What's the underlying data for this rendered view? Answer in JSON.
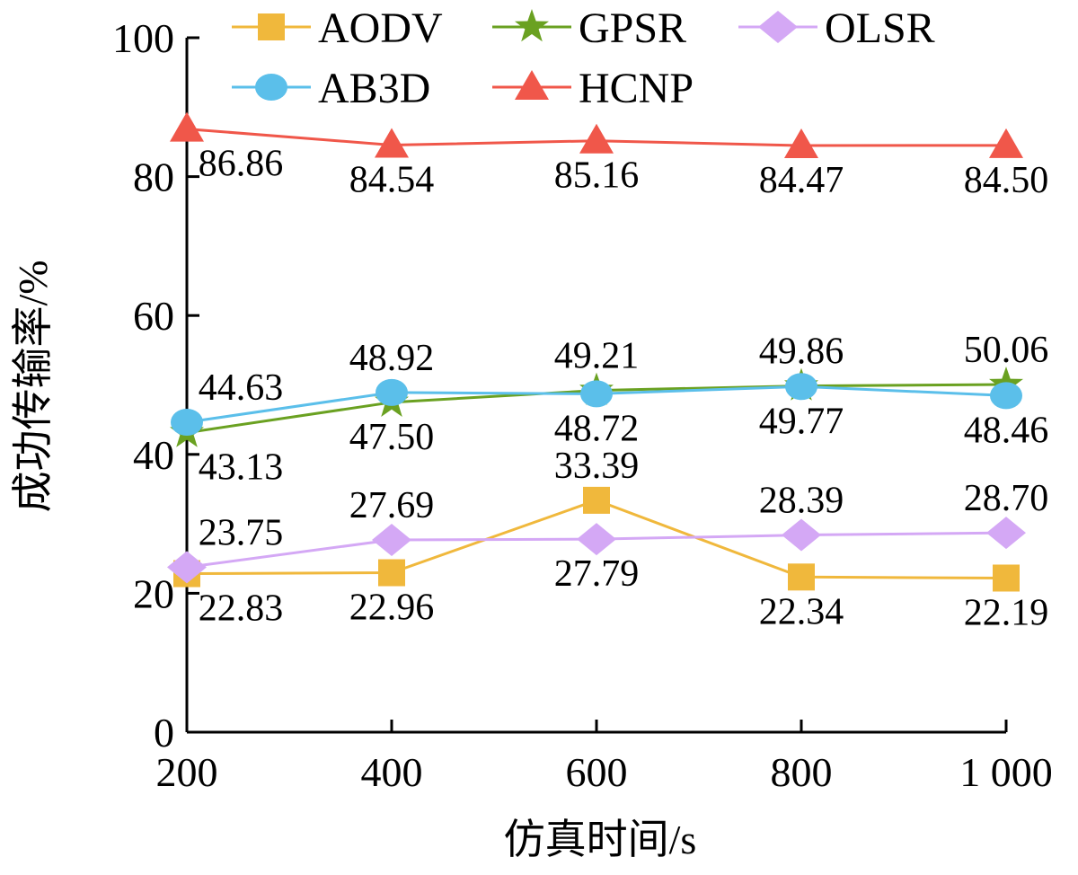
{
  "chart_data": {
    "type": "line",
    "title": "",
    "xlabel": "仿真时间/s",
    "ylabel": "成功传输率/%",
    "x": [
      200,
      400,
      600,
      800,
      1000
    ],
    "xtick_labels": [
      "200",
      "400",
      "600",
      "800",
      "1 000"
    ],
    "yticks": [
      0,
      20,
      40,
      60,
      80,
      100
    ],
    "ytick_labels": [
      "0",
      "20",
      "40",
      "60",
      "80",
      "100"
    ],
    "xlim": [
      200,
      1000
    ],
    "ylim": [
      0,
      100
    ],
    "grid": false,
    "legend_placement": "top",
    "series": [
      {
        "name": "AODV",
        "color": "#f0b83c",
        "marker": "square",
        "values": [
          22.83,
          22.96,
          33.39,
          22.34,
          22.19
        ],
        "labels": [
          "22.83",
          "22.96",
          "33.39",
          "22.34",
          "22.19"
        ]
      },
      {
        "name": "GPSR",
        "color": "#6aa121",
        "marker": "star",
        "values": [
          43.13,
          47.5,
          49.21,
          49.86,
          50.06
        ],
        "labels": [
          "43.13",
          "47.50",
          "49.21",
          "49.86",
          "50.06"
        ]
      },
      {
        "name": "OLSR",
        "color": "#d4a8f5",
        "marker": "diamond",
        "values": [
          23.75,
          27.69,
          27.79,
          28.39,
          28.7
        ],
        "labels": [
          "23.75",
          "27.69",
          "27.79",
          "28.39",
          "28.70"
        ]
      },
      {
        "name": "AB3D",
        "color": "#5bbfea",
        "marker": "circle",
        "values": [
          44.63,
          48.92,
          48.72,
          49.77,
          48.46
        ],
        "labels": [
          "44.63",
          "48.92",
          "48.72",
          "49.77",
          "48.46"
        ]
      },
      {
        "name": "HCNP",
        "color": "#f0574a",
        "marker": "triangle",
        "values": [
          86.86,
          84.54,
          85.16,
          84.47,
          84.5
        ],
        "labels": [
          "86.86",
          "84.54",
          "85.16",
          "84.47",
          "84.50"
        ]
      }
    ]
  }
}
